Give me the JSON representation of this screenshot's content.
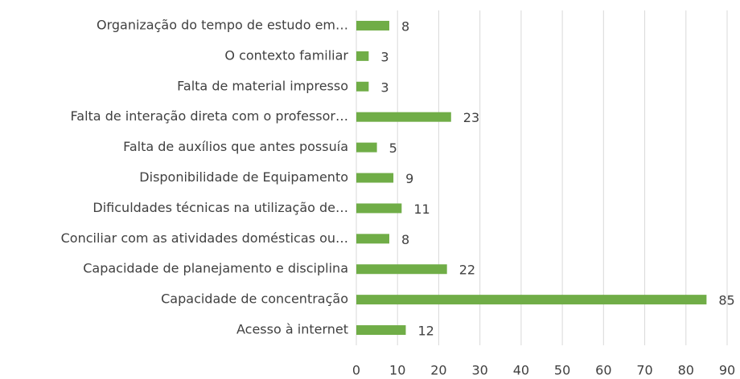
{
  "chart_data": {
    "type": "barh",
    "categories": [
      "Organização do tempo de estudo em…",
      "O contexto familiar",
      "Falta de material impresso",
      "Falta de interação direta com o professor…",
      "Falta de auxílios que antes possuía",
      "Disponibilidade de Equipamento",
      "Dificuldades técnicas na utilização de…",
      "Conciliar com as atividades domésticas ou…",
      "Capacidade de planejamento e disciplina",
      "Capacidade de concentração",
      "Acesso à internet"
    ],
    "values": [
      8,
      3,
      3,
      23,
      5,
      9,
      11,
      8,
      22,
      85,
      12
    ],
    "color": "#70ad47",
    "xlim": [
      0,
      90
    ],
    "xticks": [
      0,
      10,
      20,
      30,
      40,
      50,
      60,
      70,
      80,
      90
    ],
    "grid": true
  }
}
